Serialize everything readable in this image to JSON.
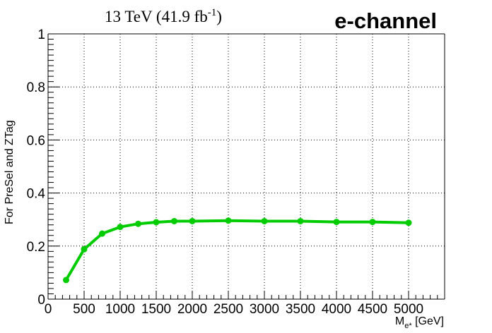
{
  "chart_data": {
    "type": "line",
    "header_left": {
      "main": "13 TeV (41.9 fb",
      "sup": "-1",
      "close": ")"
    },
    "header_right": "e-channel",
    "xlabel": {
      "main": "M",
      "sub": "e*",
      "rest": " [GeV]"
    },
    "ylabel": "For PreSel and ZTag",
    "xlim": [
      0,
      5500
    ],
    "ylim": [
      0,
      1
    ],
    "x_ticks": [
      0,
      500,
      1000,
      1500,
      2000,
      2500,
      3000,
      3500,
      4000,
      4500,
      5000
    ],
    "x_tick_labels": [
      "0",
      "500",
      "1000",
      "1500",
      "2000",
      "2500",
      "3000",
      "3500",
      "4000",
      "4500",
      "5000"
    ],
    "y_ticks": [
      0,
      0.2,
      0.4,
      0.6,
      0.8,
      1
    ],
    "y_tick_labels": [
      "0",
      "0.2",
      "0.4",
      "0.6",
      "0.8",
      "1"
    ],
    "grid": true,
    "series": [
      {
        "color": "#00cc00",
        "x": [
          250,
          500,
          750,
          1000,
          1250,
          1500,
          1750,
          2000,
          2500,
          3000,
          3500,
          4000,
          4500,
          5000
        ],
        "y": [
          0.072,
          0.188,
          0.247,
          0.272,
          0.284,
          0.29,
          0.294,
          0.294,
          0.296,
          0.294,
          0.294,
          0.291,
          0.291,
          0.288
        ]
      }
    ]
  }
}
